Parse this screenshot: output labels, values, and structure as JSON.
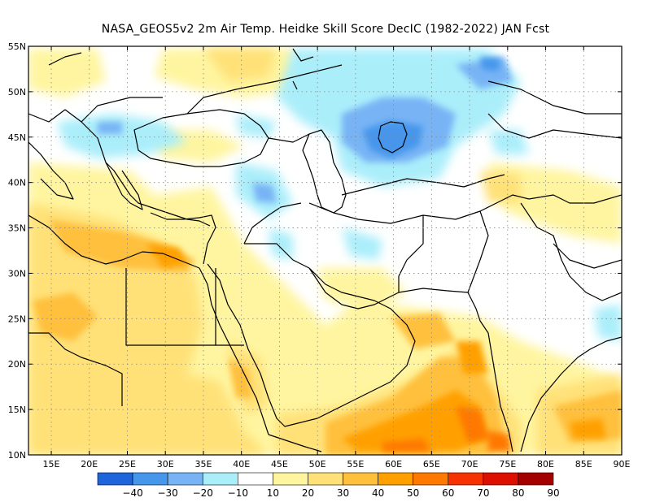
{
  "title": "NASA_GEOS5v2  2m Air Temp. Heidke Skill Score DecIC (1982-2022) JAN Fcst",
  "map": {
    "lon_range": [
      12,
      90
    ],
    "lat_range": [
      10,
      55
    ],
    "lat_ticks": [
      "55N",
      "50N",
      "45N",
      "40N",
      "35N",
      "30N",
      "25N",
      "20N",
      "15N",
      "10N"
    ],
    "lat_values": [
      55,
      50,
      45,
      40,
      35,
      30,
      25,
      20,
      15,
      10
    ],
    "lon_ticks": [
      "15E",
      "20E",
      "25E",
      "30E",
      "35E",
      "40E",
      "45E",
      "50E",
      "55E",
      "60E",
      "65E",
      "70E",
      "75E",
      "80E",
      "85E",
      "90E"
    ],
    "lon_values": [
      15,
      20,
      25,
      30,
      35,
      40,
      45,
      50,
      55,
      60,
      65,
      70,
      75,
      80,
      85,
      90
    ],
    "grid": "dotted"
  },
  "colorbar": {
    "colors": [
      "#1e64dc",
      "#4696eb",
      "#78b4f5",
      "#aaeefa",
      "#ffffff",
      "#fff5a0",
      "#ffe178",
      "#ffc03c",
      "#ffa000",
      "#ff7800",
      "#f53200",
      "#dc0f00",
      "#a50000"
    ],
    "labels": [
      "−40",
      "−30",
      "−20",
      "−10",
      "10",
      "20",
      "30",
      "40",
      "50",
      "60",
      "70",
      "80",
      "90"
    ]
  },
  "chart_data": {
    "type": "heatmap",
    "variable": "2m Air Temp. Heidke Skill Score",
    "x_range": [
      12,
      90
    ],
    "y_range": [
      10,
      55
    ],
    "levels": [
      -50,
      -40,
      -30,
      -20,
      -10,
      10,
      20,
      30,
      40,
      50,
      60,
      70,
      80,
      90
    ],
    "regions": [
      {
        "lon": [
          50,
          62
        ],
        "lat": [
          40,
          49
        ],
        "score": -30
      },
      {
        "lon": [
          52,
          58
        ],
        "lat": [
          44,
          47
        ],
        "score": -40
      },
      {
        "lon": [
          58,
          65
        ],
        "lat": [
          49,
          55
        ],
        "score": -20
      },
      {
        "lon": [
          20,
          34
        ],
        "lat": [
          41,
          47
        ],
        "score": -10
      },
      {
        "lon": [
          42,
          48
        ],
        "lat": [
          37,
          42
        ],
        "score": -10
      },
      {
        "lon": [
          12,
          40
        ],
        "lat": [
          10,
          36
        ],
        "score": 20
      },
      {
        "lon": [
          22,
          34
        ],
        "lat": [
          30,
          35
        ],
        "score": 40
      },
      {
        "lon": [
          50,
          76
        ],
        "lat": [
          10,
          24
        ],
        "score": 40
      },
      {
        "lon": [
          65,
          75
        ],
        "lat": [
          10,
          20
        ],
        "score": 50
      },
      {
        "lon": [
          78,
          90
        ],
        "lat": [
          10,
          18
        ],
        "score": 30
      },
      {
        "lon": [
          22,
          36
        ],
        "lat": [
          50,
          55
        ],
        "score": 20
      }
    ]
  }
}
